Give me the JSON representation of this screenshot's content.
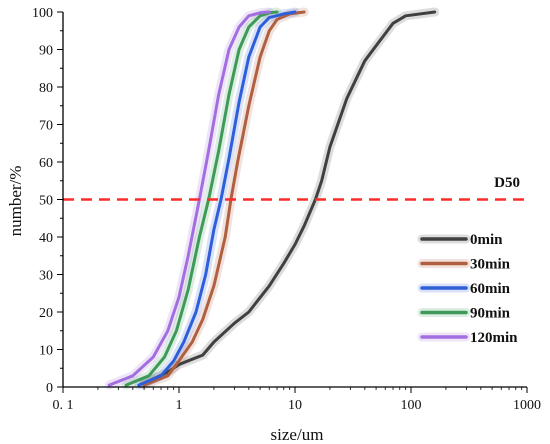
{
  "chart_data": {
    "type": "line",
    "xlabel": "size/um",
    "ylabel": "number/%",
    "xscale": "log",
    "xlim": [
      0.1,
      1000
    ],
    "ylim": [
      0,
      100
    ],
    "x_tick_labels": [
      "0. 1",
      "1",
      "10",
      "100",
      "1000"
    ],
    "y_tick_labels": [
      "0",
      "10",
      "20",
      "30",
      "40",
      "50",
      "60",
      "70",
      "80",
      "90",
      "100"
    ],
    "legend_position": "lower-right",
    "grid": false,
    "reference_line": {
      "label": "D50",
      "y": 50,
      "color": "#ff2a2a",
      "style": "dashed"
    },
    "series": [
      {
        "name": "0min",
        "color": "#404040",
        "x": [
          0.5,
          0.8,
          1.0,
          1.2,
          1.6,
          2.0,
          3.0,
          4.0,
          6.0,
          8.0,
          10.0,
          12.0,
          15.0,
          17.0,
          20.0,
          28.0,
          40.0,
          70.0,
          90.0,
          160.0
        ],
        "y": [
          1,
          4,
          6,
          7,
          8.5,
          12,
          17,
          20,
          27,
          33,
          38,
          43,
          50,
          55,
          64,
          77,
          87,
          97,
          99,
          100
        ]
      },
      {
        "name": "30min",
        "color": "#b06040",
        "x": [
          0.5,
          0.8,
          1.0,
          1.3,
          1.6,
          2.0,
          2.5,
          2.8,
          3.2,
          4.0,
          5.0,
          6.0,
          7.0,
          9.0,
          12.0
        ],
        "y": [
          0.5,
          3,
          7,
          12,
          18,
          27,
          40,
          50,
          60,
          75,
          88,
          95,
          98,
          99.5,
          100
        ]
      },
      {
        "name": "60min",
        "color": "#2f5fd8",
        "x": [
          0.45,
          0.7,
          0.9,
          1.1,
          1.4,
          1.7,
          2.0,
          2.3,
          2.7,
          3.3,
          4.0,
          5.0,
          6.0,
          8.0,
          10.0
        ],
        "y": [
          0.5,
          3,
          7,
          12,
          20,
          30,
          42,
          50,
          61,
          76,
          88,
          96,
          98.5,
          99.5,
          100
        ]
      },
      {
        "name": "90min",
        "color": "#3f9a5a",
        "x": [
          0.35,
          0.55,
          0.75,
          0.95,
          1.2,
          1.5,
          1.8,
          2.2,
          2.7,
          3.3,
          4.0,
          5.0,
          6.0,
          7.0
        ],
        "y": [
          0.5,
          3,
          8,
          15,
          26,
          40,
          50,
          63,
          78,
          90,
          96,
          99,
          99.8,
          100
        ]
      },
      {
        "name": "120min",
        "color": "#a26ee0",
        "x": [
          0.25,
          0.4,
          0.6,
          0.8,
          1.0,
          1.2,
          1.5,
          1.8,
          2.2,
          2.7,
          3.3,
          4.0,
          5.0,
          6.0
        ],
        "y": [
          0.5,
          3,
          8,
          15,
          24,
          35,
          50,
          63,
          78,
          90,
          96,
          99,
          99.8,
          100
        ]
      }
    ]
  }
}
